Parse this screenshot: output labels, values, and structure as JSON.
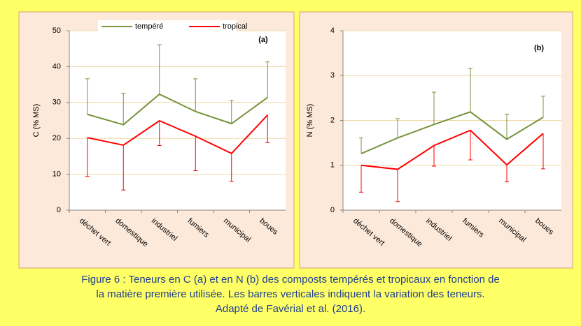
{
  "chart_data": [
    {
      "type": "line",
      "annotation": "(a)",
      "y_label": "C (% MS)",
      "categories": [
        "déchet vert",
        "domestique",
        "industriel",
        "fumiers",
        "municipal",
        "boues"
      ],
      "ylim": [
        0,
        50
      ],
      "yticks": [
        0,
        10,
        20,
        30,
        40,
        50
      ],
      "grid": true,
      "legend": "top",
      "series": [
        {
          "name": "tempéré",
          "color": "#77933c",
          "error_side": "upper",
          "values": [
            26.7,
            23.8,
            32.3,
            27.5,
            24.1,
            31.4
          ],
          "errors": [
            9.9,
            8.8,
            13.8,
            9.1,
            6.5,
            9.9
          ]
        },
        {
          "name": "tropical",
          "color": "#ff0000",
          "error_side": "lower",
          "values": [
            20.2,
            18.1,
            24.9,
            20.6,
            15.8,
            26.5
          ],
          "errors": [
            10.8,
            12.5,
            6.9,
            9.6,
            7.8,
            7.7
          ]
        }
      ]
    },
    {
      "type": "line",
      "annotation": "(b)",
      "y_label": "N (% MS)",
      "categories": [
        "déchet vert",
        "domestique",
        "industriel",
        "fumiers",
        "municipal",
        "boues"
      ],
      "ylim": [
        0,
        4
      ],
      "yticks": [
        0,
        1,
        2,
        3,
        4
      ],
      "grid": true,
      "series": [
        {
          "color": "#77933c",
          "error_side": "upper",
          "values": [
            1.26,
            1.61,
            1.91,
            2.19,
            1.58,
            2.07
          ],
          "errors": [
            0.35,
            0.43,
            0.72,
            0.97,
            0.56,
            0.47
          ]
        },
        {
          "color": "#ff0000",
          "error_side": "lower",
          "values": [
            1.0,
            0.91,
            1.44,
            1.78,
            1.01,
            1.71
          ],
          "errors": [
            0.6,
            0.72,
            0.46,
            0.66,
            0.38,
            0.79
          ]
        }
      ]
    }
  ],
  "caption": [
    "Figure 6 : Teneurs en C (a) et en N (b) des composts tempérés et tropicaux en fonction de",
    "la matière première utilisée. Les barres verticales indiquent la variation des teneurs.",
    "Adapté de Favérial et al. (2016)."
  ]
}
